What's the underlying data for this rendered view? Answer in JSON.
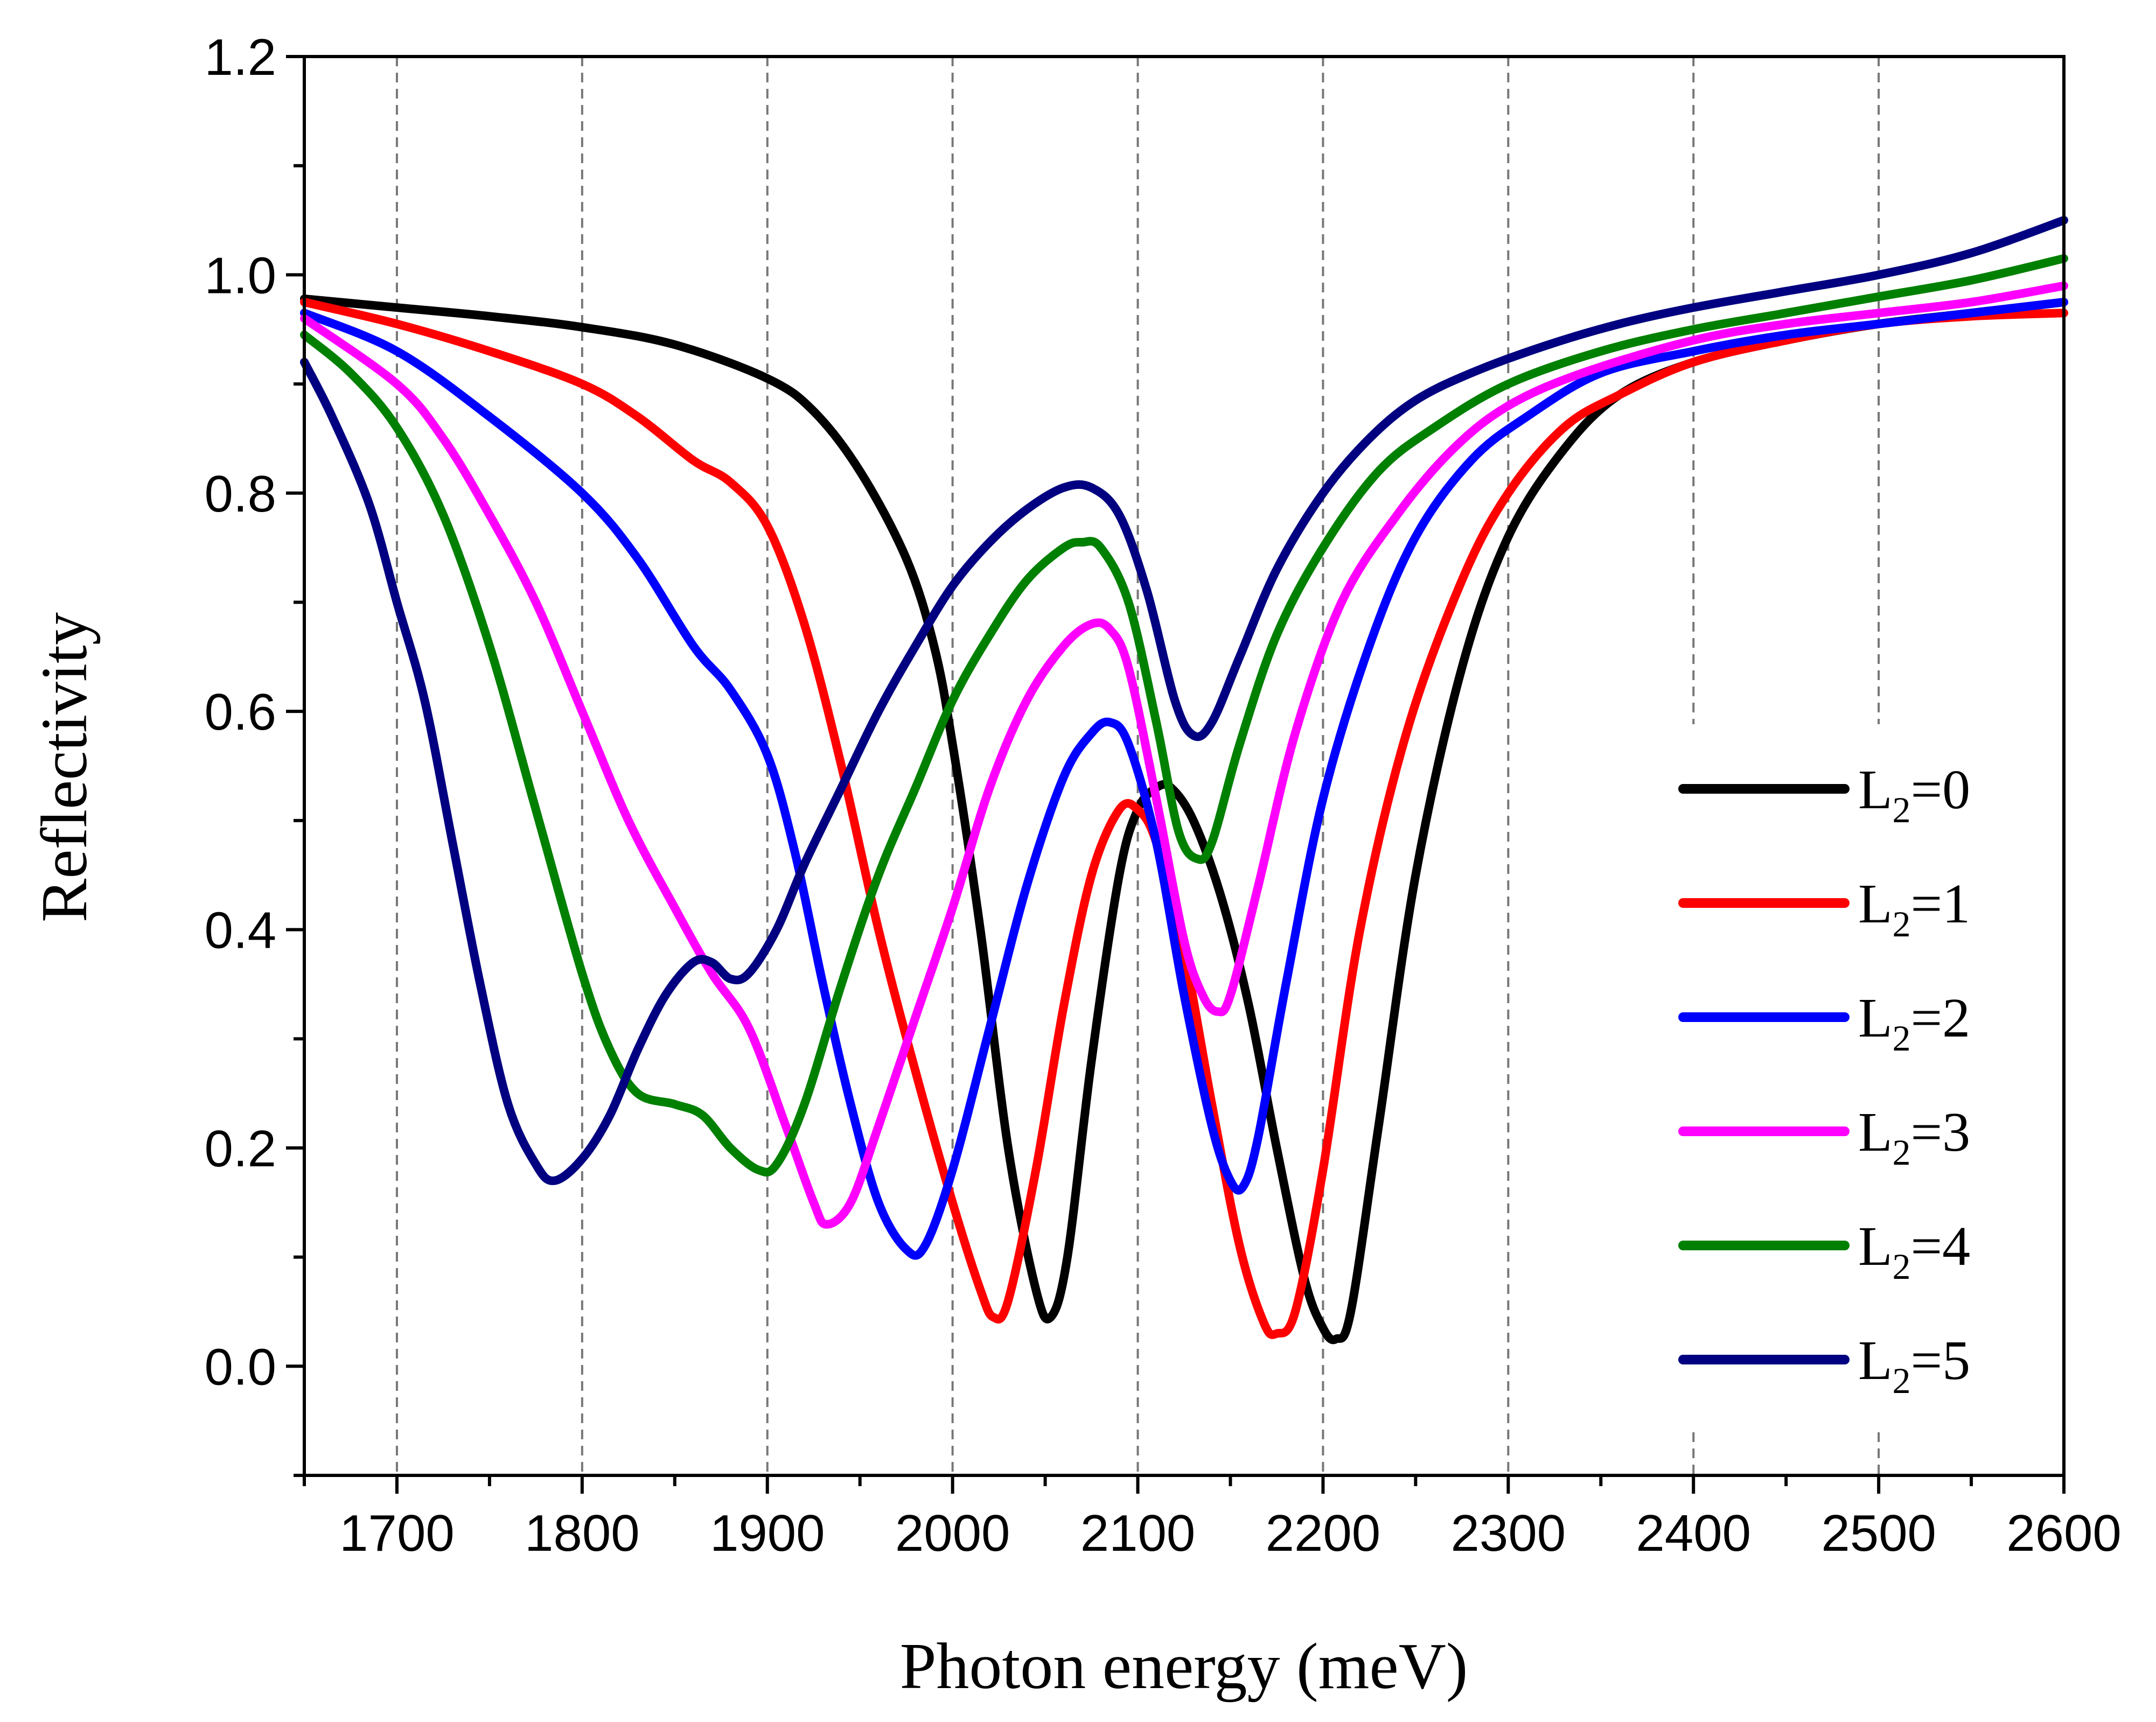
{
  "chart_data": {
    "type": "line",
    "title": "",
    "xlabel": "Photon energy (meV)",
    "ylabel": "Reflectivity",
    "xlim": [
      1650,
      2600
    ],
    "ylim": [
      -0.1,
      1.2
    ],
    "xticks": [
      1700,
      1800,
      1900,
      2000,
      2100,
      2200,
      2300,
      2400,
      2500,
      2600
    ],
    "xtick_labels": [
      "1700",
      "1800",
      "1900",
      "2000",
      "2100",
      "2200",
      "2300",
      "2400",
      "2500",
      "2600"
    ],
    "yticks": [
      0.0,
      0.2,
      0.4,
      0.6,
      0.8,
      1.0,
      1.2
    ],
    "ytick_labels": [
      "0.0",
      "0.2",
      "0.4",
      "0.6",
      "0.8",
      "1.0",
      "1.2"
    ],
    "grid": "vertical dashed lines at x ticks",
    "legend_position": "right",
    "series": [
      {
        "name": "L2=0",
        "label_main": "L",
        "label_sub": "2",
        "label_tail": "=0",
        "color": "#000000",
        "points": [
          [
            1650,
            0.978
          ],
          [
            1700,
            0.97
          ],
          [
            1750,
            0.962
          ],
          [
            1800,
            0.952
          ],
          [
            1850,
            0.936
          ],
          [
            1900,
            0.905
          ],
          [
            1925,
            0.875
          ],
          [
            1950,
            0.82
          ],
          [
            1975,
            0.74
          ],
          [
            1990,
            0.66
          ],
          [
            2000,
            0.57
          ],
          [
            2015,
            0.4
          ],
          [
            2030,
            0.2
          ],
          [
            2045,
            0.07
          ],
          [
            2053,
            0.045
          ],
          [
            2062,
            0.1
          ],
          [
            2075,
            0.28
          ],
          [
            2090,
            0.45
          ],
          [
            2100,
            0.51
          ],
          [
            2110,
            0.53
          ],
          [
            2118,
            0.53
          ],
          [
            2130,
            0.5
          ],
          [
            2145,
            0.43
          ],
          [
            2160,
            0.33
          ],
          [
            2175,
            0.2
          ],
          [
            2190,
            0.08
          ],
          [
            2200,
            0.035
          ],
          [
            2207,
            0.025
          ],
          [
            2215,
            0.05
          ],
          [
            2230,
            0.22
          ],
          [
            2250,
            0.45
          ],
          [
            2275,
            0.64
          ],
          [
            2300,
            0.76
          ],
          [
            2330,
            0.84
          ],
          [
            2360,
            0.89
          ],
          [
            2400,
            0.92
          ],
          [
            2450,
            0.94
          ],
          [
            2500,
            0.955
          ],
          [
            2550,
            0.965
          ],
          [
            2600,
            0.975
          ]
        ]
      },
      {
        "name": "L2=1",
        "label_main": "L",
        "label_sub": "2",
        "label_tail": "=1",
        "color": "#ff0000",
        "points": [
          [
            1650,
            0.975
          ],
          [
            1700,
            0.955
          ],
          [
            1750,
            0.93
          ],
          [
            1800,
            0.9
          ],
          [
            1830,
            0.87
          ],
          [
            1860,
            0.83
          ],
          [
            1880,
            0.81
          ],
          [
            1900,
            0.77
          ],
          [
            1920,
            0.68
          ],
          [
            1940,
            0.55
          ],
          [
            1960,
            0.4
          ],
          [
            1980,
            0.27
          ],
          [
            2000,
            0.15
          ],
          [
            2015,
            0.07
          ],
          [
            2022,
            0.045
          ],
          [
            2030,
            0.06
          ],
          [
            2045,
            0.18
          ],
          [
            2060,
            0.33
          ],
          [
            2075,
            0.45
          ],
          [
            2090,
            0.51
          ],
          [
            2100,
            0.51
          ],
          [
            2110,
            0.48
          ],
          [
            2125,
            0.38
          ],
          [
            2140,
            0.24
          ],
          [
            2155,
            0.11
          ],
          [
            2168,
            0.04
          ],
          [
            2175,
            0.03
          ],
          [
            2185,
            0.05
          ],
          [
            2200,
            0.18
          ],
          [
            2220,
            0.4
          ],
          [
            2245,
            0.58
          ],
          [
            2275,
            0.72
          ],
          [
            2300,
            0.8
          ],
          [
            2330,
            0.86
          ],
          [
            2360,
            0.89
          ],
          [
            2400,
            0.92
          ],
          [
            2450,
            0.94
          ],
          [
            2500,
            0.955
          ],
          [
            2550,
            0.962
          ],
          [
            2600,
            0.965
          ]
        ]
      },
      {
        "name": "L2=2",
        "label_main": "L",
        "label_sub": "2",
        "label_tail": "=2",
        "color": "#0000ff",
        "points": [
          [
            1650,
            0.965
          ],
          [
            1700,
            0.93
          ],
          [
            1750,
            0.87
          ],
          [
            1800,
            0.8
          ],
          [
            1830,
            0.74
          ],
          [
            1860,
            0.66
          ],
          [
            1880,
            0.62
          ],
          [
            1900,
            0.56
          ],
          [
            1915,
            0.47
          ],
          [
            1930,
            0.35
          ],
          [
            1945,
            0.24
          ],
          [
            1960,
            0.15
          ],
          [
            1975,
            0.107
          ],
          [
            1985,
            0.11
          ],
          [
            2000,
            0.18
          ],
          [
            2020,
            0.31
          ],
          [
            2040,
            0.44
          ],
          [
            2060,
            0.54
          ],
          [
            2075,
            0.58
          ],
          [
            2085,
            0.59
          ],
          [
            2095,
            0.57
          ],
          [
            2110,
            0.48
          ],
          [
            2125,
            0.34
          ],
          [
            2140,
            0.22
          ],
          [
            2150,
            0.17
          ],
          [
            2157,
            0.165
          ],
          [
            2165,
            0.21
          ],
          [
            2180,
            0.35
          ],
          [
            2200,
            0.52
          ],
          [
            2225,
            0.66
          ],
          [
            2250,
            0.76
          ],
          [
            2280,
            0.83
          ],
          [
            2310,
            0.87
          ],
          [
            2350,
            0.91
          ],
          [
            2400,
            0.93
          ],
          [
            2450,
            0.945
          ],
          [
            2500,
            0.955
          ],
          [
            2550,
            0.965
          ],
          [
            2600,
            0.975
          ]
        ]
      },
      {
        "name": "L2=3",
        "label_main": "L",
        "label_sub": "2",
        "label_tail": "=3",
        "color": "#ff00ff",
        "points": [
          [
            1650,
            0.96
          ],
          [
            1700,
            0.9
          ],
          [
            1725,
            0.85
          ],
          [
            1750,
            0.78
          ],
          [
            1775,
            0.7
          ],
          [
            1800,
            0.6
          ],
          [
            1825,
            0.5
          ],
          [
            1850,
            0.42
          ],
          [
            1870,
            0.36
          ],
          [
            1890,
            0.31
          ],
          [
            1910,
            0.22
          ],
          [
            1925,
            0.15
          ],
          [
            1932,
            0.13
          ],
          [
            1945,
            0.15
          ],
          [
            1960,
            0.22
          ],
          [
            1980,
            0.32
          ],
          [
            2000,
            0.42
          ],
          [
            2020,
            0.53
          ],
          [
            2040,
            0.61
          ],
          [
            2060,
            0.66
          ],
          [
            2075,
            0.68
          ],
          [
            2085,
            0.675
          ],
          [
            2095,
            0.64
          ],
          [
            2110,
            0.52
          ],
          [
            2125,
            0.39
          ],
          [
            2135,
            0.34
          ],
          [
            2143,
            0.325
          ],
          [
            2150,
            0.34
          ],
          [
            2165,
            0.44
          ],
          [
            2185,
            0.58
          ],
          [
            2210,
            0.7
          ],
          [
            2240,
            0.78
          ],
          [
            2270,
            0.84
          ],
          [
            2300,
            0.88
          ],
          [
            2340,
            0.91
          ],
          [
            2400,
            0.94
          ],
          [
            2450,
            0.955
          ],
          [
            2500,
            0.965
          ],
          [
            2550,
            0.975
          ],
          [
            2600,
            0.99
          ]
        ]
      },
      {
        "name": "L2=4",
        "label_main": "L",
        "label_sub": "2",
        "label_tail": "=4",
        "color": "#008000",
        "points": [
          [
            1650,
            0.945
          ],
          [
            1675,
            0.91
          ],
          [
            1700,
            0.86
          ],
          [
            1725,
            0.78
          ],
          [
            1750,
            0.66
          ],
          [
            1775,
            0.51
          ],
          [
            1800,
            0.36
          ],
          [
            1815,
            0.29
          ],
          [
            1830,
            0.25
          ],
          [
            1850,
            0.24
          ],
          [
            1865,
            0.23
          ],
          [
            1880,
            0.2
          ],
          [
            1895,
            0.18
          ],
          [
            1905,
            0.185
          ],
          [
            1920,
            0.24
          ],
          [
            1940,
            0.35
          ],
          [
            1960,
            0.45
          ],
          [
            1980,
            0.53
          ],
          [
            2000,
            0.61
          ],
          [
            2020,
            0.67
          ],
          [
            2040,
            0.72
          ],
          [
            2060,
            0.75
          ],
          [
            2070,
            0.755
          ],
          [
            2080,
            0.75
          ],
          [
            2095,
            0.7
          ],
          [
            2110,
            0.59
          ],
          [
            2122,
            0.49
          ],
          [
            2132,
            0.465
          ],
          [
            2140,
            0.48
          ],
          [
            2155,
            0.57
          ],
          [
            2175,
            0.67
          ],
          [
            2200,
            0.75
          ],
          [
            2230,
            0.82
          ],
          [
            2260,
            0.86
          ],
          [
            2300,
            0.9
          ],
          [
            2350,
            0.93
          ],
          [
            2400,
            0.95
          ],
          [
            2450,
            0.965
          ],
          [
            2500,
            0.98
          ],
          [
            2550,
            0.995
          ],
          [
            2600,
            1.015
          ]
        ]
      },
      {
        "name": "L2=5",
        "label_main": "L",
        "label_sub": "2",
        "label_tail": "=5",
        "color": "#000080",
        "points": [
          [
            1650,
            0.92
          ],
          [
            1665,
            0.87
          ],
          [
            1685,
            0.79
          ],
          [
            1700,
            0.7
          ],
          [
            1715,
            0.61
          ],
          [
            1730,
            0.48
          ],
          [
            1745,
            0.35
          ],
          [
            1760,
            0.24
          ],
          [
            1775,
            0.185
          ],
          [
            1785,
            0.17
          ],
          [
            1800,
            0.19
          ],
          [
            1815,
            0.23
          ],
          [
            1830,
            0.29
          ],
          [
            1845,
            0.34
          ],
          [
            1860,
            0.37
          ],
          [
            1870,
            0.37
          ],
          [
            1880,
            0.355
          ],
          [
            1890,
            0.36
          ],
          [
            1905,
            0.4
          ],
          [
            1920,
            0.46
          ],
          [
            1940,
            0.53
          ],
          [
            1960,
            0.6
          ],
          [
            1980,
            0.66
          ],
          [
            2000,
            0.715
          ],
          [
            2020,
            0.755
          ],
          [
            2040,
            0.785
          ],
          [
            2060,
            0.805
          ],
          [
            2075,
            0.805
          ],
          [
            2090,
            0.78
          ],
          [
            2105,
            0.71
          ],
          [
            2120,
            0.61
          ],
          [
            2130,
            0.578
          ],
          [
            2140,
            0.59
          ],
          [
            2155,
            0.65
          ],
          [
            2175,
            0.73
          ],
          [
            2200,
            0.8
          ],
          [
            2225,
            0.85
          ],
          [
            2250,
            0.885
          ],
          [
            2280,
            0.91
          ],
          [
            2320,
            0.935
          ],
          [
            2360,
            0.955
          ],
          [
            2400,
            0.97
          ],
          [
            2450,
            0.985
          ],
          [
            2500,
            1.0
          ],
          [
            2550,
            1.02
          ],
          [
            2600,
            1.05
          ]
        ]
      }
    ]
  }
}
